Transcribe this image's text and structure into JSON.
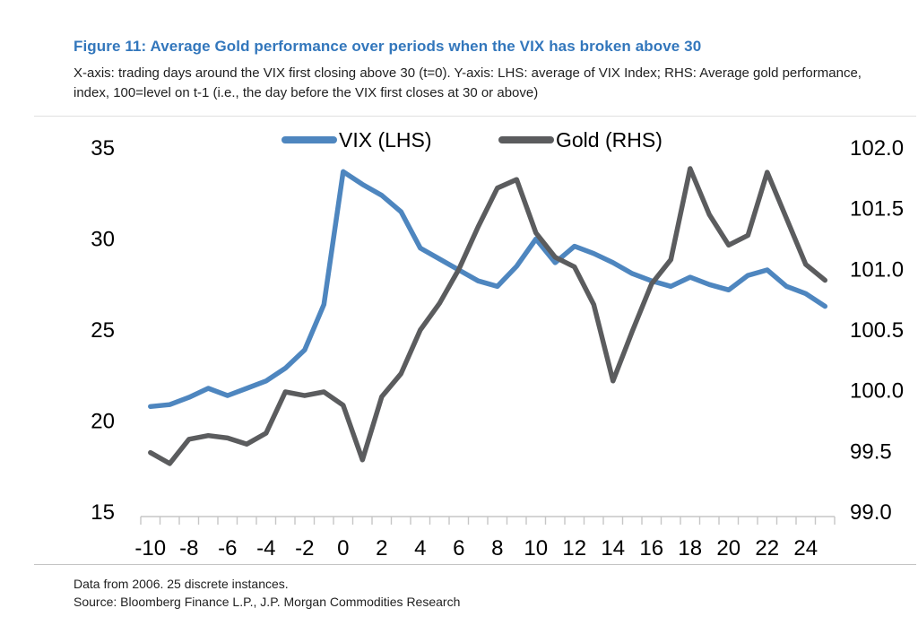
{
  "figure": {
    "title": "Figure 11: Average Gold performance over periods when the VIX has broken above 30",
    "subtitle": "X-axis: trading days around the VIX first closing above 30 (t=0). Y-axis: LHS: average of VIX Index; RHS: Average gold performance, index, 100=level on t-1 (i.e., the day before the VIX first closes at 30 or above)",
    "footnotes": [
      "Data from 2006. 25 discrete instances.",
      "Source: Bloomberg Finance L.P., J.P. Morgan Commodities Research"
    ],
    "title_color": "#3377BC"
  },
  "chart_data": {
    "type": "line",
    "x": [
      -10,
      -9,
      -8,
      -7,
      -6,
      -5,
      -4,
      -3,
      -2,
      -1,
      0,
      1,
      2,
      3,
      4,
      5,
      6,
      7,
      8,
      9,
      10,
      11,
      12,
      13,
      14,
      15,
      16,
      17,
      18,
      19,
      20,
      21,
      22,
      23,
      24,
      25
    ],
    "x_axis": {
      "label_values": [
        -10,
        -8,
        -6,
        -4,
        -2,
        0,
        2,
        4,
        6,
        8,
        10,
        12,
        14,
        16,
        18,
        20,
        22,
        24
      ],
      "tick_labels": [
        "-10",
        "-8",
        "-6",
        "-4",
        "-2",
        "0",
        "2",
        "4",
        "6",
        "8",
        "10",
        "12",
        "14",
        "16",
        "18",
        "20",
        "22",
        "24"
      ]
    },
    "left_axis": {
      "min": 15,
      "max": 35,
      "ticks": [
        15,
        20,
        25,
        30,
        35
      ],
      "tick_labels": [
        "15",
        "20",
        "25",
        "30",
        "35"
      ]
    },
    "right_axis": {
      "min": 99.0,
      "max": 102.0,
      "ticks": [
        99.0,
        99.5,
        100.0,
        100.5,
        101.0,
        101.5,
        102.0
      ],
      "tick_labels": [
        "99.0",
        "99.5",
        "100.0",
        "100.5",
        "101.0",
        "101.5",
        "102.0"
      ]
    },
    "series": [
      {
        "name": "VIX (LHS)",
        "axis": "left",
        "color": "#4E86BF",
        "values": [
          20.8,
          20.9,
          21.3,
          21.8,
          21.4,
          21.8,
          22.2,
          22.9,
          23.9,
          26.4,
          33.7,
          33.0,
          32.4,
          31.5,
          29.5,
          28.9,
          28.3,
          27.7,
          27.4,
          28.5,
          30.0,
          28.7,
          29.6,
          29.2,
          28.7,
          28.1,
          27.7,
          27.4,
          27.9,
          27.5,
          27.2,
          28.0,
          28.3,
          27.4,
          27.0,
          26.3
        ]
      },
      {
        "name": "Gold (RHS)",
        "axis": "right",
        "color": "#5B5C5E",
        "values": [
          99.49,
          99.4,
          99.6,
          99.63,
          99.61,
          99.56,
          99.65,
          99.99,
          99.96,
          99.99,
          99.88,
          99.43,
          99.95,
          100.14,
          100.5,
          100.72,
          101.0,
          101.35,
          101.67,
          101.74,
          101.3,
          101.1,
          101.02,
          100.71,
          100.08,
          100.49,
          100.88,
          101.08,
          101.83,
          101.45,
          101.2,
          101.28,
          101.8,
          101.42,
          101.04,
          100.91
        ]
      }
    ],
    "legend_position": "top-center",
    "grid": false,
    "axis_color": "#c6c6c6"
  }
}
